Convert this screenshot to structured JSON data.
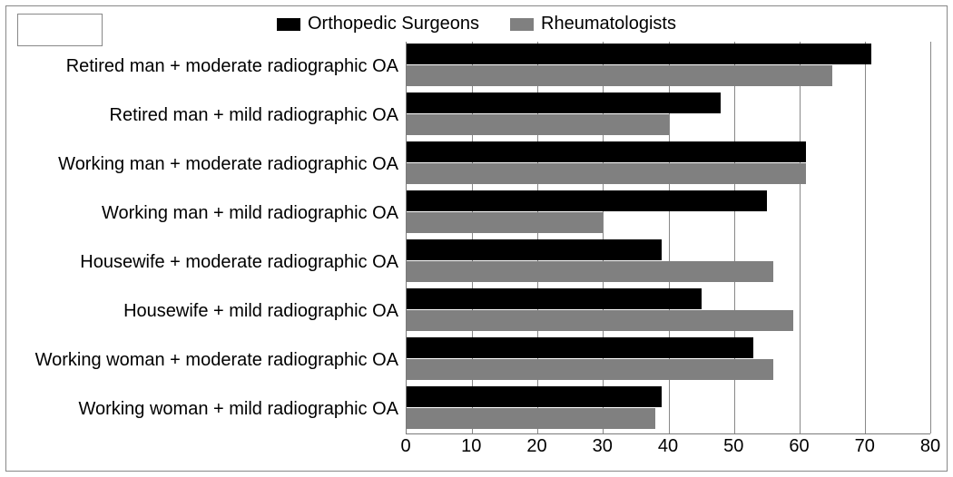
{
  "chart": {
    "type": "bar-horizontal-grouped",
    "background_color": "#ffffff",
    "border_color": "#888888",
    "grid_color": "#888888",
    "text_color": "#000000",
    "font_family": "Arial",
    "label_fontsize": 20,
    "tick_fontsize": 20,
    "legend_fontsize": 20,
    "x_axis": {
      "min": 0,
      "max": 80,
      "tick_step": 10,
      "ticks": [
        0,
        10,
        20,
        30,
        40,
        50,
        60,
        70,
        80
      ]
    },
    "series": [
      {
        "key": "orthopedic",
        "label": "Orthopedic Surgeons",
        "color": "#000000"
      },
      {
        "key": "rheum",
        "label": "Rheumatologists",
        "color": "#808080"
      }
    ],
    "categories": [
      {
        "label": "Retired man + moderate radiographic OA",
        "orthopedic": 71,
        "rheum": 65
      },
      {
        "label": "Retired man + mild radiographic OA",
        "orthopedic": 48,
        "rheum": 40
      },
      {
        "label": "Working man + moderate radiographic OA",
        "orthopedic": 61,
        "rheum": 61
      },
      {
        "label": "Working man + mild radiographic OA",
        "orthopedic": 55,
        "rheum": 30
      },
      {
        "label": "Housewife + moderate radiographic OA",
        "orthopedic": 39,
        "rheum": 56
      },
      {
        "label": "Housewife  + mild radiographic OA",
        "orthopedic": 45,
        "rheum": 59
      },
      {
        "label": "Working woman + moderate radiographic OA",
        "orthopedic": 53,
        "rheum": 56
      },
      {
        "label": "Working woman + mild radiographic OA",
        "orthopedic": 39,
        "rheum": 38
      }
    ]
  }
}
